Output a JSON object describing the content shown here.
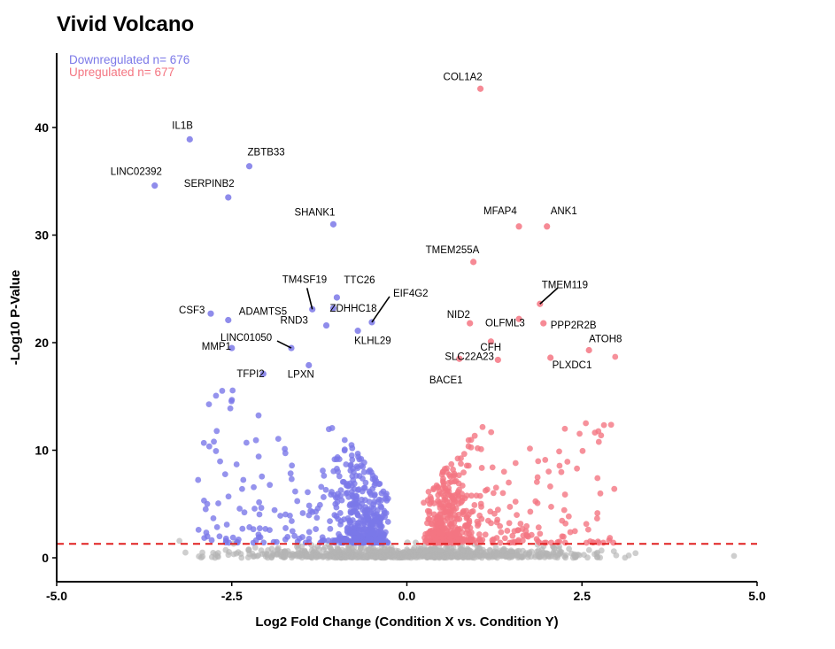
{
  "chart_data": {
    "type": "scatter",
    "title": "Vivid Volcano",
    "xlabel": "Log2 Fold Change (Condition X vs. Condition Y)",
    "ylabel": "-Log10 P-Value",
    "xlim": [
      -5,
      5
    ],
    "ylim": [
      -2,
      46
    ],
    "x_ticks": [
      "-5.0",
      "-2.5",
      "0.0",
      "2.5",
      "5.0"
    ],
    "y_ticks": [
      "0",
      "10",
      "20",
      "30",
      "40"
    ],
    "threshold_line": 1.3,
    "legend_position": "top-left",
    "legend": {
      "down": "Downregulated n= 676",
      "up": "Upregulated n= 677"
    },
    "colors": {
      "down": "#7b78e8",
      "up": "#f47682",
      "ns": "#b4b4b4",
      "threshold": "#e02020"
    },
    "series": [
      {
        "name": "Downregulated",
        "points": [
          {
            "label": "IL1B",
            "x": -3.1,
            "y": 38.9
          },
          {
            "label": "ZBTB33",
            "x": -2.25,
            "y": 36.4
          },
          {
            "label": "LINC02392",
            "x": -3.6,
            "y": 34.6
          },
          {
            "label": "SERPINB2",
            "x": -2.55,
            "y": 33.5
          },
          {
            "label": "SHANK1",
            "x": -1.05,
            "y": 31.0
          },
          {
            "label": "TM4SF19",
            "x": -1.35,
            "y": 23.1
          },
          {
            "label": "TTC26",
            "x": -1.0,
            "y": 24.2
          },
          {
            "label": "EIF4G2",
            "x": -0.5,
            "y": 21.9
          },
          {
            "label": "ZDHHC18",
            "x": -1.05,
            "y": 23.2
          },
          {
            "label": "CSF3",
            "x": -2.8,
            "y": 22.7
          },
          {
            "label": "ADAMTS5",
            "x": -2.55,
            "y": 22.1
          },
          {
            "label": "RND3",
            "x": -1.15,
            "y": 21.6
          },
          {
            "label": "LINC01050",
            "x": -1.65,
            "y": 19.5
          },
          {
            "label": "KLHL29",
            "x": -0.7,
            "y": 21.1
          },
          {
            "label": "MMP1",
            "x": -2.5,
            "y": 19.5
          },
          {
            "label": "TFPI2",
            "x": -2.05,
            "y": 17.1
          },
          {
            "label": "LPXN",
            "x": -1.4,
            "y": 17.9
          }
        ]
      },
      {
        "name": "Upregulated",
        "points": [
          {
            "label": "COL1A2",
            "x": 1.05,
            "y": 43.6
          },
          {
            "label": "MFAP4",
            "x": 1.6,
            "y": 30.8
          },
          {
            "label": "ANK1",
            "x": 2.0,
            "y": 30.8
          },
          {
            "label": "TMEM255A",
            "x": 0.95,
            "y": 27.5
          },
          {
            "label": "TMEM119",
            "x": 1.9,
            "y": 23.6
          },
          {
            "label": "NID2",
            "x": 0.9,
            "y": 21.8
          },
          {
            "label": "OLFML3",
            "x": 1.6,
            "y": 22.2
          },
          {
            "label": "PPP2R2B",
            "x": 1.95,
            "y": 21.8
          },
          {
            "label": "CFH",
            "x": 1.2,
            "y": 20.1
          },
          {
            "label": "SLC22A23",
            "x": 1.3,
            "y": 18.4
          },
          {
            "label": "PLXDC1",
            "x": 2.05,
            "y": 18.6
          },
          {
            "label": "ATOH8",
            "x": 2.6,
            "y": 19.3
          },
          {
            "label": "BACE1",
            "x": 0.75,
            "y": 18.5
          }
        ]
      }
    ]
  }
}
